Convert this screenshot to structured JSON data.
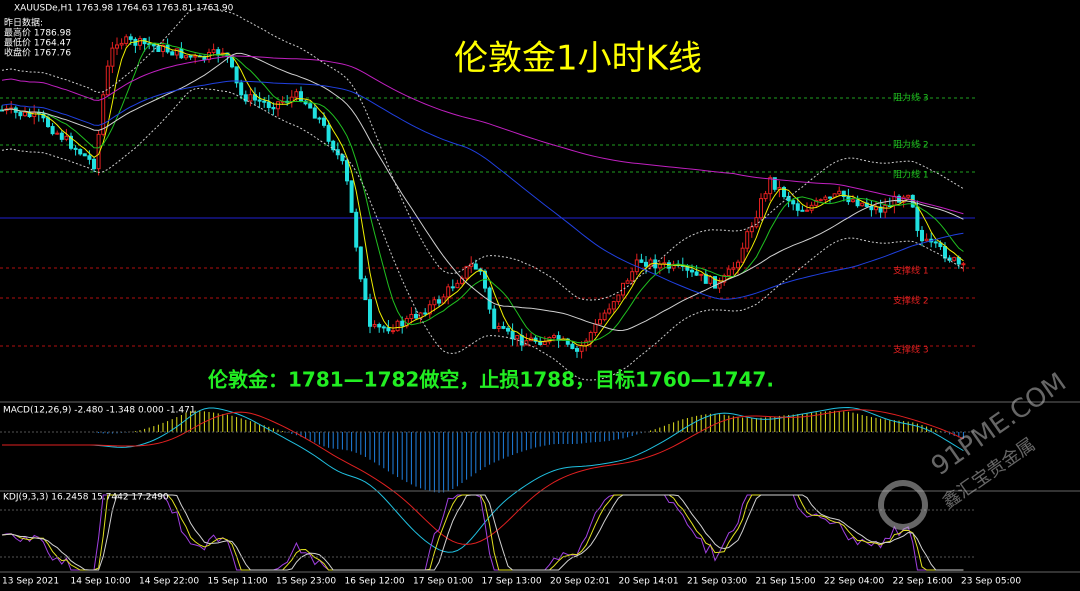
{
  "header": {
    "symbol_line": "XAUUSDe,H1  1763.98 1764.63 1763.81 1763.90"
  },
  "info_box": {
    "title": "昨日数据:",
    "lines": [
      "最高价 1786.98",
      "最低价 1764.47",
      "收盘价 1767.76"
    ]
  },
  "title": "伦敦金1小时K线",
  "levels": [
    "阻力线 3",
    "阻力线 2",
    "阻力线 1",
    "支撑线 1",
    "支撑线 2",
    "支撑线 3"
  ],
  "strategy": "伦敦金：1781—1782做空，止损1788，目标1760—1747.",
  "macd_label": "MACD(12,26,9) -2.480 -1.348 0.000 -1.471",
  "kdj_label": "KDJ(9,3,3) 16.2458 15.7442 17.2490",
  "time_axis": [
    "13 Sep 2021",
    "14 Sep 10:00",
    "14 Sep 22:00",
    "15 Sep 11:00",
    "15 Sep 23:00",
    "16 Sep 12:00",
    "17 Sep 01:00",
    "17 Sep 13:00",
    "20 Sep 02:01",
    "20 Sep 14:01",
    "21 Sep 03:00",
    "21 Sep 15:00",
    "22 Sep 04:00",
    "22 Sep 16:00",
    "23 Sep 05:00"
  ],
  "watermark": {
    "site": "91PME.COM",
    "brand": "鑫汇宝贵金属"
  }
}
